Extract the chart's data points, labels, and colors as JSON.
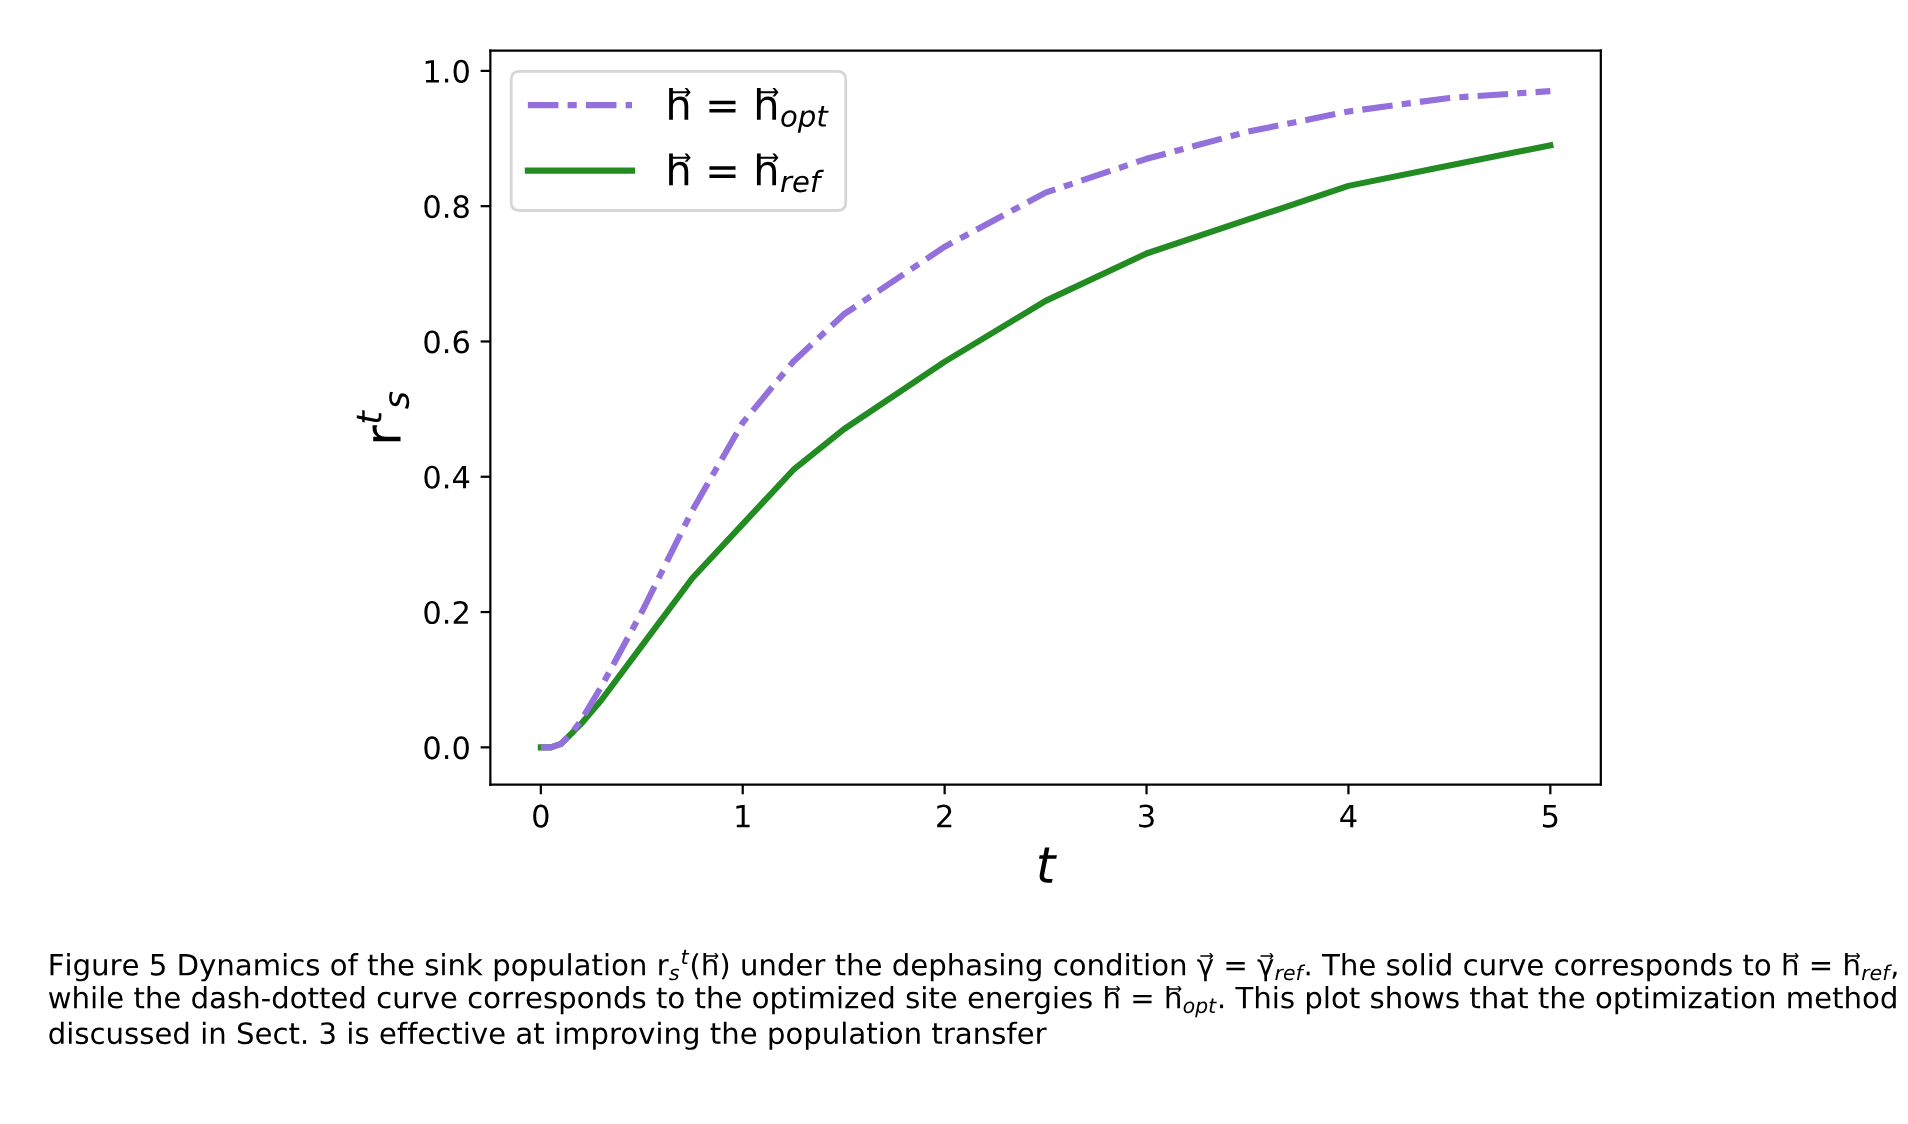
{
  "chart_data": {
    "type": "line",
    "xlabel": "t",
    "ylabel": "r$^{t}$$_{s}$",
    "xlim": [
      -0.25,
      5.25
    ],
    "xticks": [
      0,
      1,
      2,
      3,
      4,
      5
    ],
    "ylim": [
      -0.055,
      1.03
    ],
    "yticks": [
      {
        "value": 0,
        "label": "0.0"
      },
      0.2,
      0.4,
      0.6,
      0.8,
      {
        "value": 1,
        "label": "1.0"
      }
    ],
    "x": [
      0,
      0.05,
      0.1,
      0.15,
      0.2,
      0.3,
      0.5,
      0.75,
      1,
      1.25,
      1.5,
      2,
      2.5,
      3,
      3.5,
      4,
      4.5,
      5
    ],
    "series": [
      {
        "name": "h⃗ = h⃗$_{opt}$",
        "color": "#9370db",
        "line_style": "dashdot",
        "values": [
          0,
          0,
          0.005,
          0.02,
          0.04,
          0.09,
          0.2,
          0.35,
          0.48,
          0.57,
          0.64,
          0.74,
          0.82,
          0.87,
          0.91,
          0.94,
          0.96,
          0.97
        ]
      },
      {
        "name": "h⃗ = h⃗$_{ref}$",
        "color": "#228b22",
        "line_style": "solid",
        "values": [
          0,
          0,
          0.005,
          0.02,
          0.035,
          0.07,
          0.15,
          0.25,
          0.33,
          0.41,
          0.47,
          0.57,
          0.66,
          0.73,
          0.78,
          0.83,
          0.86,
          0.89
        ]
      }
    ],
    "legend": "top left",
    "grid": false,
    "annotations": [
      "Figure 5 Dynamics of the sink population r$_{s}$$^{t}$(h⃗) under the dephasing condition γ⃗ = γ⃗$_{ref}$. The solid curve corresponds to h⃗ = h⃗$_{ref}$, while the dash-dotted curve corresponds to the optimized site energies h⃗ = h⃗$_{opt}$. This plot shows that the optimization method discussed in Sect. 3 is effective at improving the population transfer"
    ]
  }
}
